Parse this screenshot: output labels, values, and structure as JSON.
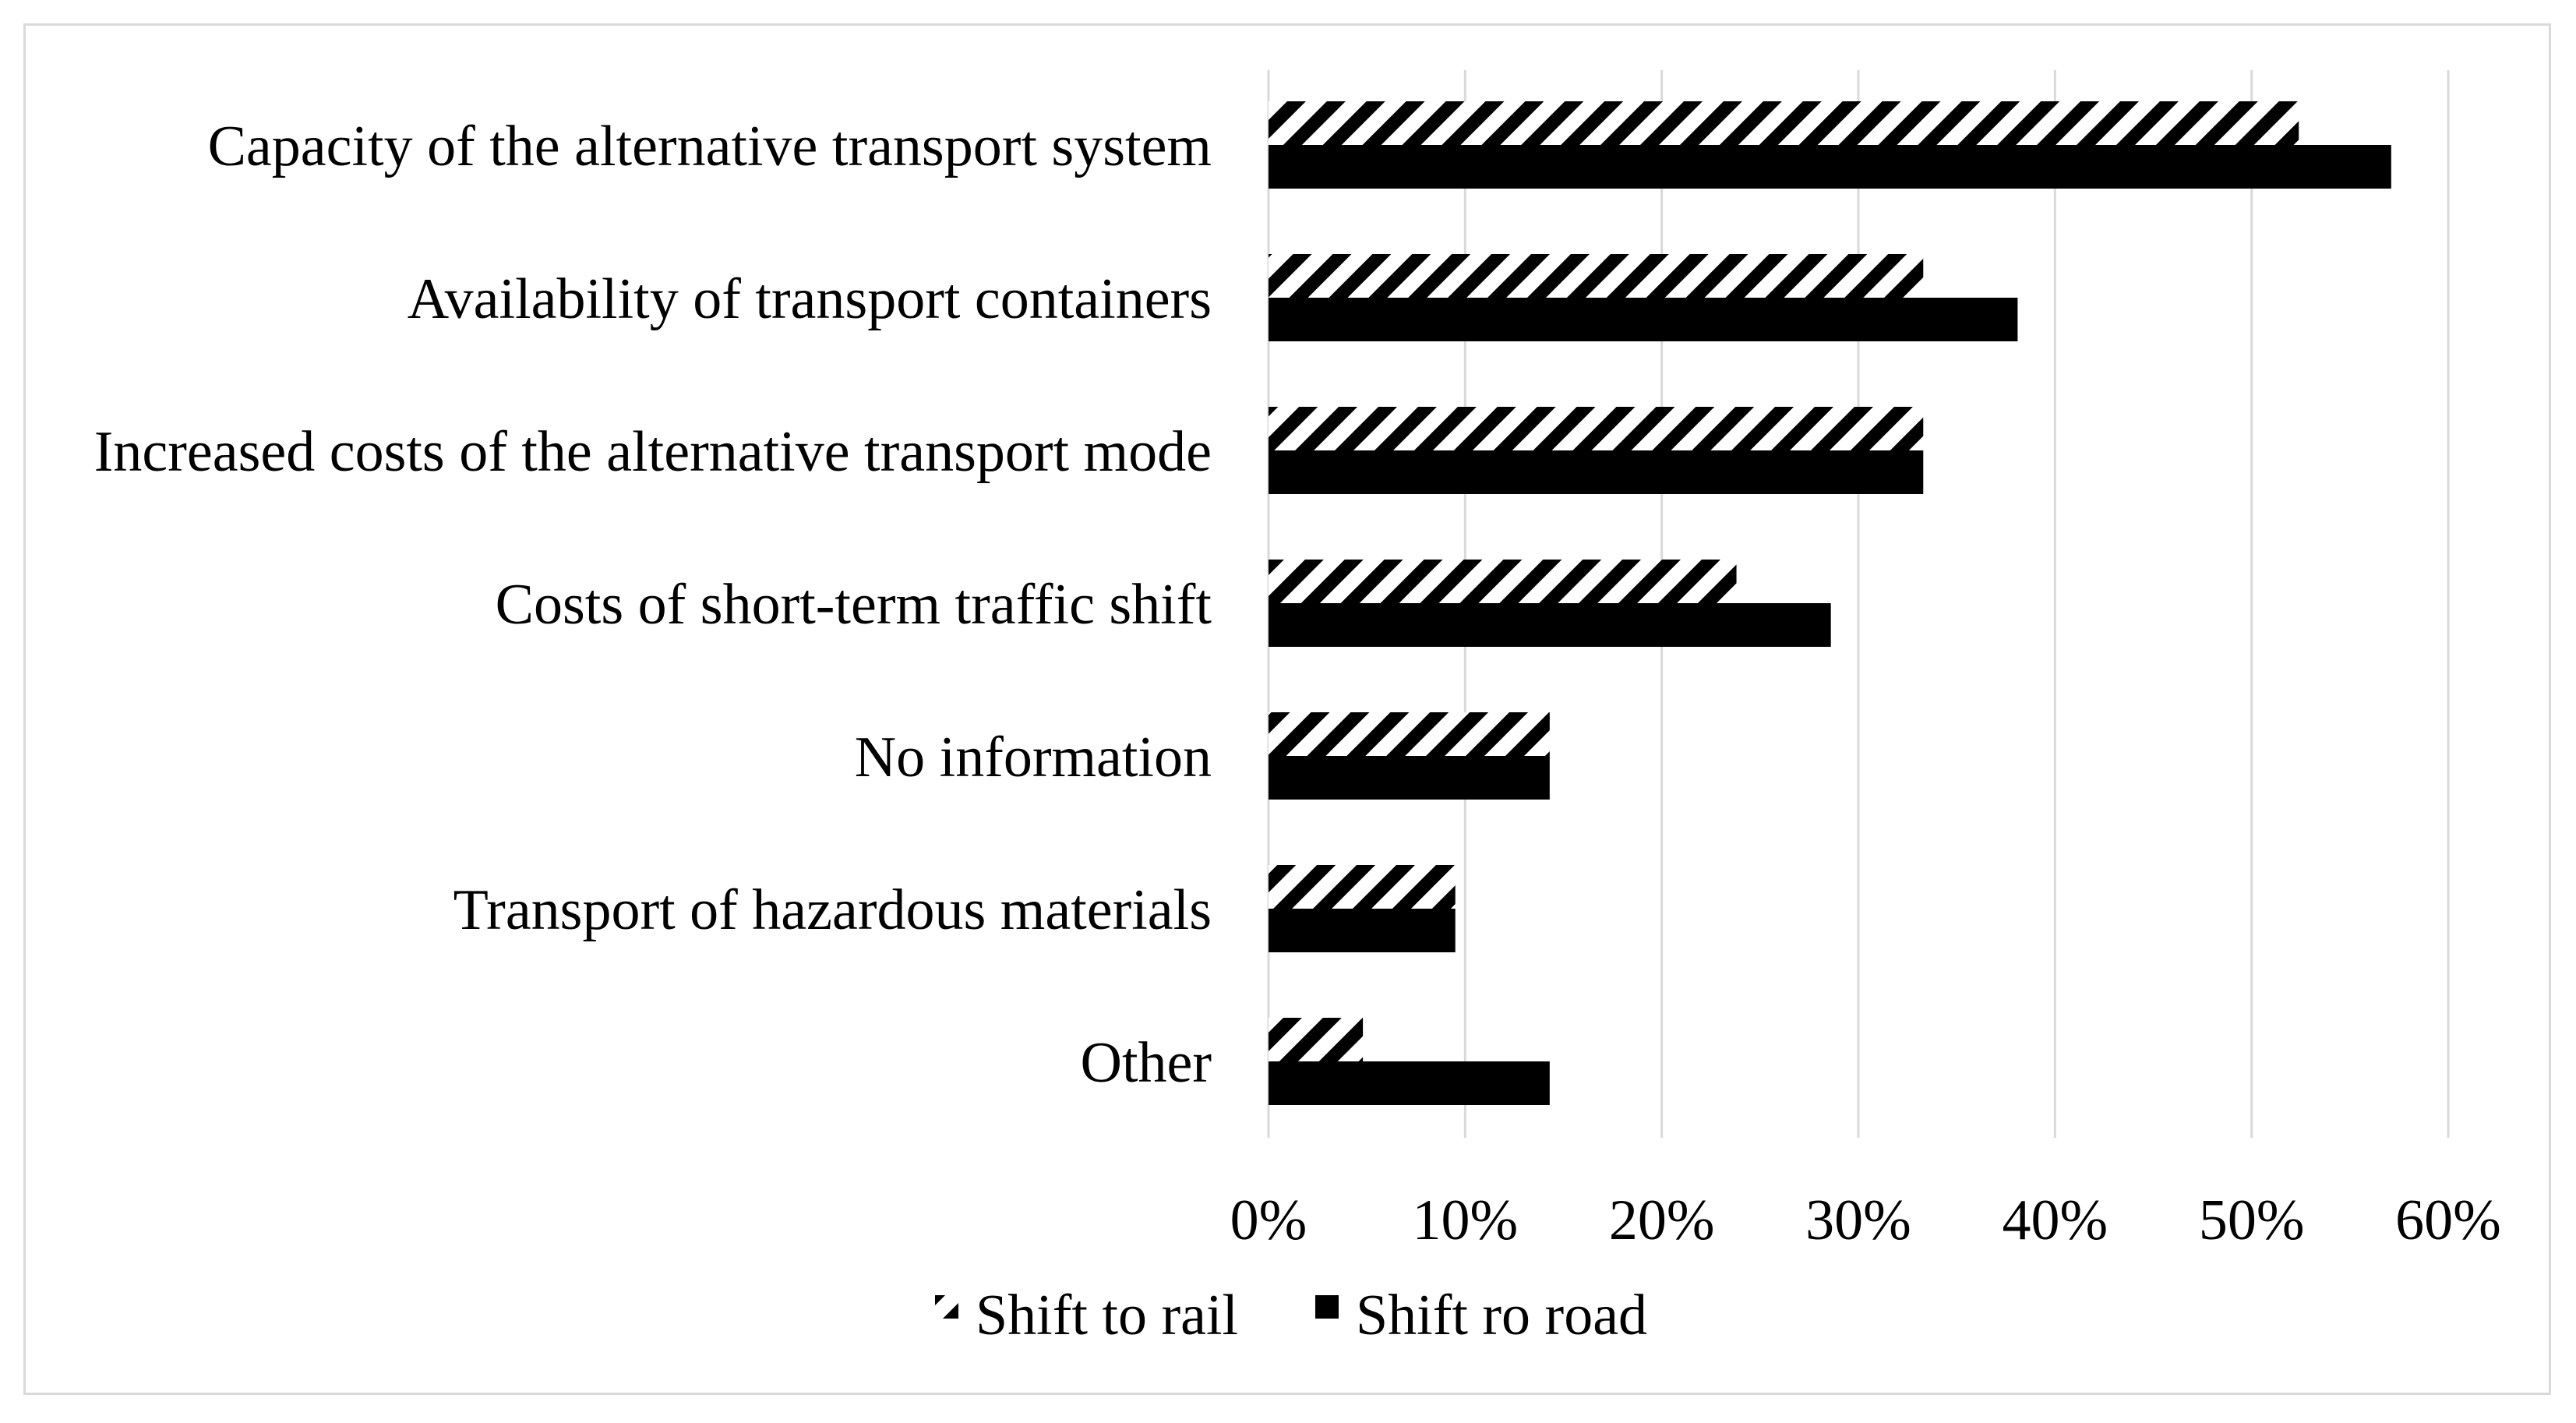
{
  "chart_data": {
    "type": "bar",
    "orientation": "horizontal",
    "categories": [
      "Capacity of the alternative transport system",
      "Availability of transport containers",
      "Increased costs of the alternative transport mode",
      "Costs of short-term traffic shift",
      "No information",
      "Transport of hazardous materials",
      "Other"
    ],
    "series": [
      {
        "name": "Shift to rail",
        "values": [
          52.4,
          33.3,
          33.3,
          23.8,
          14.3,
          9.5,
          4.8
        ],
        "fill": "hatched",
        "color": "#000000"
      },
      {
        "name": "Shift ro road",
        "values": [
          57.1,
          38.1,
          33.3,
          28.6,
          14.3,
          9.5,
          14.3
        ],
        "fill": "solid",
        "color": "#000000"
      }
    ],
    "xlim": [
      0,
      60
    ],
    "xticks": [
      "0%",
      "10%",
      "20%",
      "30%",
      "40%",
      "50%",
      "60%"
    ],
    "grid": true,
    "legend_position": "bottom",
    "title": "",
    "xlabel": "",
    "ylabel": ""
  }
}
